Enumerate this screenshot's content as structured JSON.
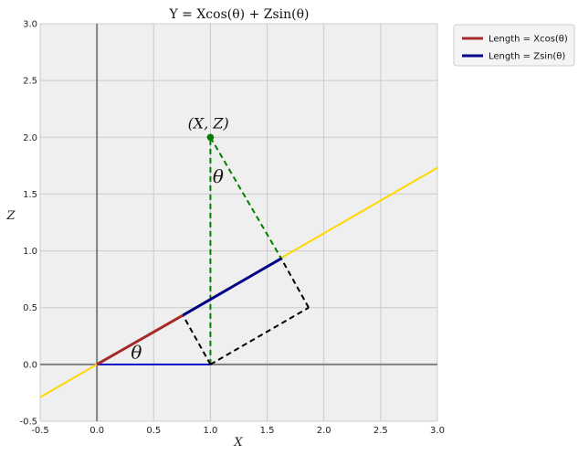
{
  "chart_data": {
    "type": "line",
    "title": "Y =  Xcos(θ) + Zsin(θ)",
    "xlabel": "X",
    "ylabel": "Z",
    "xlim": [
      -0.5,
      3.0
    ],
    "ylim": [
      -0.5,
      3.0
    ],
    "grid": true,
    "legend_placement": "outside-top-right",
    "x_ticks": [
      "-0.5",
      "0.0",
      "0.5",
      "1.0",
      "1.5",
      "2.0",
      "2.5",
      "3.0"
    ],
    "y_ticks": [
      "-0.5",
      "0.0",
      "0.5",
      "1.0",
      "1.5",
      "2.0",
      "2.5",
      "3.0"
    ],
    "point": {
      "x": 1.0,
      "y": 2.0,
      "label": "(X, Z)",
      "color": "#008000"
    },
    "series": [
      {
        "name": "Length = Xcos(θ)",
        "kind": "solid",
        "color": "#a52a2a",
        "x": [
          0.0,
          0.758
        ],
        "y": [
          0.0,
          0.433
        ]
      },
      {
        "name": "Length = Zsin(θ)",
        "kind": "solid",
        "color": "#00008b",
        "x": [
          0.758,
          1.624
        ],
        "y": [
          0.433,
          0.933
        ]
      }
    ],
    "lines": [
      {
        "kind": "line",
        "color": "#ffd700",
        "x": [
          -0.5,
          3.0
        ],
        "y": [
          -0.289,
          1.732
        ]
      },
      {
        "kind": "solid",
        "color": "#0000cd",
        "x": [
          0.0,
          1.0
        ],
        "y": [
          0.0,
          0.0
        ]
      },
      {
        "kind": "dashed",
        "color": "#008000",
        "x": [
          1.0,
          1.0
        ],
        "y": [
          0.0,
          2.0
        ]
      },
      {
        "kind": "dashed",
        "color": "#008000",
        "x": [
          1.0,
          1.624
        ],
        "y": [
          2.0,
          0.933
        ]
      },
      {
        "kind": "dashed",
        "color": "#000000",
        "x": [
          1.0,
          0.758
        ],
        "y": [
          0.0,
          0.433
        ]
      },
      {
        "kind": "dashed",
        "color": "#000000",
        "x": [
          1.0,
          1.866
        ],
        "y": [
          0.0,
          0.5
        ]
      },
      {
        "kind": "dashed",
        "color": "#000000",
        "x": [
          1.866,
          1.624
        ],
        "y": [
          0.5,
          0.933
        ]
      }
    ],
    "annotations": [
      {
        "text": "θ",
        "x": 0.3,
        "y": 0.05,
        "size": "large"
      },
      {
        "text": "θ",
        "x": 1.02,
        "y": 1.6,
        "size": "large"
      },
      {
        "text": "(X, Z)",
        "x": 0.8,
        "y": 2.08,
        "size": "medium"
      }
    ]
  }
}
